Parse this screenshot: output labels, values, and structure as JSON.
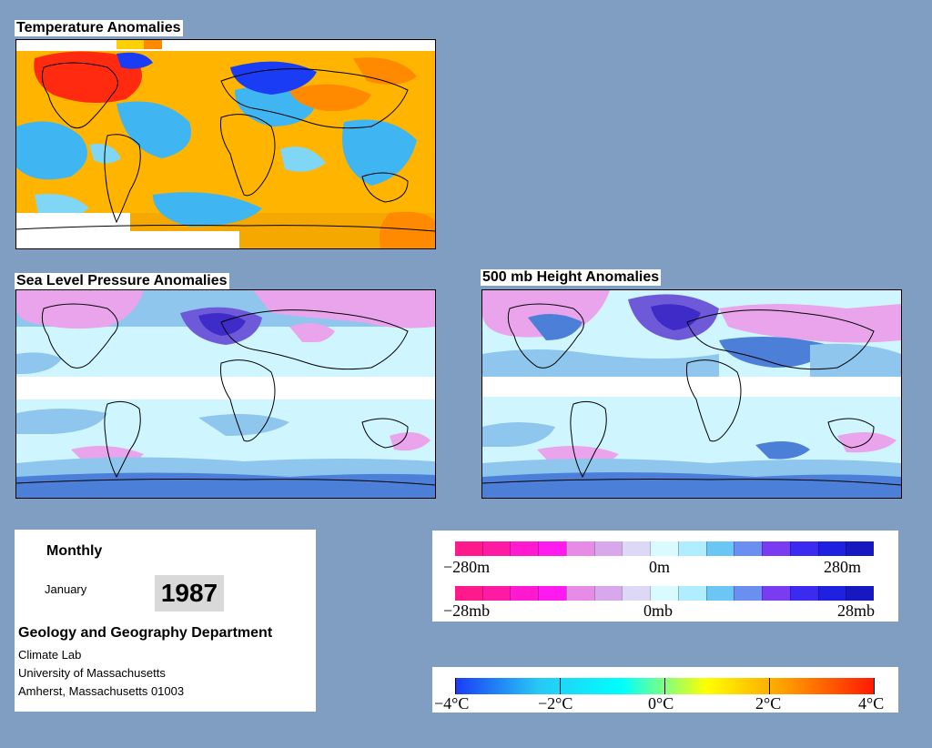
{
  "maps": {
    "temperature": {
      "title": "Temperature Anomalies"
    },
    "slp": {
      "title": "Sea Level Pressure Anomalies"
    },
    "height500": {
      "title": "500 mb Height Anomalies"
    }
  },
  "info": {
    "period": "Monthly",
    "month": "January",
    "year": "1987",
    "department": "Geology and Geography Department",
    "lines": [
      "Climate Lab",
      "University of Massachusetts",
      "Amherst, Massachusetts 01003"
    ]
  },
  "legends": {
    "height_bar": {
      "labels": [
        "−280m",
        "0m",
        "280m"
      ],
      "colors": [
        "#ff1a8c",
        "#ff1aa3",
        "#ff1ad1",
        "#ff1af0",
        "#e68ce6",
        "#d9a8ec",
        "#dcd8f5",
        "#d9fbff",
        "#b0eeff",
        "#6bc6f5",
        "#6b8ff0",
        "#7a3cf0",
        "#3b2bf0",
        "#2020e0",
        "#1818c0"
      ]
    },
    "pressure_bar": {
      "labels": [
        "−28mb",
        "0mb",
        "28mb"
      ],
      "colors": [
        "#ff1a8c",
        "#ff1aa3",
        "#ff1ad1",
        "#ff1af0",
        "#e68ce6",
        "#d9a8ec",
        "#dcd8f5",
        "#d9fbff",
        "#b0eeff",
        "#6bc6f5",
        "#6b8ff0",
        "#7a3cf0",
        "#3b2bf0",
        "#2020e0",
        "#1818c0"
      ]
    },
    "temperature_bar": {
      "labels": [
        "−4°C",
        "−2°C",
        "0°C",
        "2°C",
        "4°C"
      ],
      "colors": [
        "#1a3cf5",
        "#28c8f5",
        "#00ffff",
        "#ffff00",
        "#ff9600",
        "#ff1a00"
      ]
    }
  },
  "colors": {
    "background": "#7f9ec2",
    "temp_warm": "#ffb400",
    "temp_cool": "#3fb6f2",
    "temp_hot": "#ff2a10",
    "temp_cold": "#1a3cf5",
    "anom_base": "#cff5ff",
    "anom_mid": "#8ec6ee",
    "anom_deep": "#4c7fd8",
    "anom_neg": "#e9a4ec",
    "anom_strong_neg": "#3e2bc8"
  }
}
